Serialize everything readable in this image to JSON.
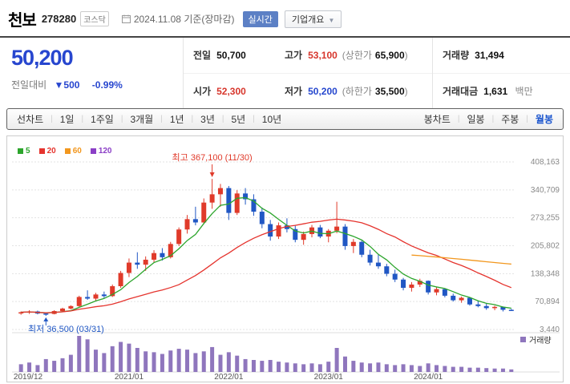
{
  "header": {
    "stock_name": "천보",
    "stock_code": "278280",
    "market_badge": "코스닥",
    "date_info": "2024.11.08 기준(장마감)",
    "realtime_badge": "실시간",
    "company_overview_label": "기업개요"
  },
  "price": {
    "current": "50,200",
    "change_label": "전일대비",
    "change_direction": "▼",
    "change_value": "500",
    "change_percent": "-0.99%",
    "prev_close_label": "전일",
    "prev_close": "50,700",
    "open_label": "시가",
    "open": "52,300",
    "high_label": "고가",
    "high": "53,100",
    "upper_limit_label": "상한가",
    "upper_limit": "65,900",
    "low_label": "저가",
    "low": "50,200",
    "lower_limit_label": "하한가",
    "lower_limit": "35,500",
    "volume_label": "거래량",
    "volume": "31,494",
    "trade_value_label": "거래대금",
    "trade_value": "1,631",
    "trade_value_unit": "백만"
  },
  "toolbar": {
    "line_tabs": [
      "선차트",
      "1일",
      "1주일",
      "3개월",
      "1년",
      "3년",
      "5년",
      "10년"
    ],
    "candle_tabs": [
      "봉차트",
      "일봉",
      "주봉",
      "월봉"
    ],
    "active_tab": "월봉"
  },
  "chart_data": {
    "type": "candlestick",
    "title": "천보 월봉 차트",
    "legend": [
      {
        "label": "5",
        "color": "#2ca52c"
      },
      {
        "label": "20",
        "color": "#e5342e"
      },
      {
        "label": "60",
        "color": "#f2971e"
      },
      {
        "label": "120",
        "color": "#8b3fc6"
      }
    ],
    "colors": {
      "up": "#e03a2a",
      "down": "#2057c4",
      "volume": "#8f76bd"
    },
    "ylim": [
      3440,
      408163
    ],
    "y_ticks": [
      "408,163",
      "340,709",
      "273,255",
      "205,802",
      "138,348",
      "70,894",
      "3,440"
    ],
    "x_labels": [
      {
        "index": 0,
        "label": "2019/12"
      },
      {
        "index": 13,
        "label": "2021/01"
      },
      {
        "index": 25,
        "label": "2022/01"
      },
      {
        "index": 37,
        "label": "2023/01"
      },
      {
        "index": 49,
        "label": "2024/01"
      }
    ],
    "volume_label": "거래량",
    "annotations": [
      {
        "type": "high",
        "text": "최고 367,100 (11/30)",
        "index": 23,
        "color": "#e03a2a"
      },
      {
        "type": "low",
        "text": "최저 36,500 (03/31)",
        "index": 3,
        "color": "#2057c4"
      }
    ],
    "moving_averages": [
      {
        "period": 5,
        "color": "#2ca52c"
      },
      {
        "period": 20,
        "color": "#e5342e"
      },
      {
        "period": 60,
        "color": "#f2971e",
        "start_index": 47
      },
      {
        "period": 120,
        "color": "#8b3fc6",
        "hidden": true
      }
    ],
    "candles": [
      [
        43000,
        47000,
        39000,
        45000,
        900
      ],
      [
        45000,
        50000,
        41000,
        47000,
        1100
      ],
      [
        47000,
        49000,
        40000,
        42000,
        800
      ],
      [
        42000,
        45000,
        36500,
        41000,
        1500
      ],
      [
        41000,
        50000,
        40000,
        48000,
        1300
      ],
      [
        48000,
        56000,
        46000,
        54000,
        1600
      ],
      [
        54000,
        62000,
        52000,
        60000,
        2000
      ],
      [
        60000,
        85000,
        58000,
        82000,
        4200
      ],
      [
        82000,
        98000,
        75000,
        78000,
        3800
      ],
      [
        78000,
        92000,
        72000,
        88000,
        2600
      ],
      [
        88000,
        95000,
        80000,
        84000,
        2200
      ],
      [
        84000,
        112000,
        82000,
        108000,
        3000
      ],
      [
        108000,
        145000,
        104000,
        140000,
        3500
      ],
      [
        140000,
        175000,
        130000,
        165000,
        3300
      ],
      [
        165000,
        190000,
        150000,
        160000,
        2800
      ],
      [
        160000,
        180000,
        145000,
        172000,
        2400
      ],
      [
        172000,
        195000,
        165000,
        188000,
        2300
      ],
      [
        188000,
        200000,
        170000,
        178000,
        2100
      ],
      [
        178000,
        215000,
        175000,
        210000,
        2500
      ],
      [
        210000,
        250000,
        205000,
        245000,
        2700
      ],
      [
        245000,
        280000,
        235000,
        270000,
        2600
      ],
      [
        270000,
        300000,
        255000,
        262000,
        2200
      ],
      [
        262000,
        320000,
        258000,
        310000,
        2400
      ],
      [
        310000,
        367100,
        295000,
        330000,
        2900
      ],
      [
        330000,
        355000,
        300000,
        345000,
        2000
      ],
      [
        345000,
        350000,
        268000,
        285000,
        2300
      ],
      [
        285000,
        340000,
        280000,
        332000,
        1900
      ],
      [
        332000,
        345000,
        305000,
        318000,
        1500
      ],
      [
        318000,
        330000,
        278000,
        288000,
        1400
      ],
      [
        288000,
        298000,
        248000,
        258000,
        1300
      ],
      [
        258000,
        268000,
        218000,
        228000,
        1400
      ],
      [
        228000,
        262000,
        222000,
        255000,
        1200
      ],
      [
        255000,
        272000,
        238000,
        246000,
        1100
      ],
      [
        246000,
        254000,
        214000,
        220000,
        1000
      ],
      [
        220000,
        240000,
        208000,
        234000,
        900
      ],
      [
        234000,
        256000,
        226000,
        250000,
        1000
      ],
      [
        250000,
        256000,
        224000,
        228000,
        900
      ],
      [
        228000,
        246000,
        214000,
        242000,
        1200
      ],
      [
        242000,
        312000,
        236000,
        252000,
        2800
      ],
      [
        252000,
        258000,
        196000,
        205000,
        1800
      ],
      [
        205000,
        222000,
        188000,
        215000,
        1300
      ],
      [
        215000,
        218000,
        178000,
        184000,
        1100
      ],
      [
        184000,
        196000,
        158000,
        165000,
        1000
      ],
      [
        165000,
        186000,
        150000,
        156000,
        1100
      ],
      [
        156000,
        162000,
        132000,
        138000,
        900
      ],
      [
        138000,
        148000,
        118000,
        124000,
        800
      ],
      [
        124000,
        128000,
        98000,
        104000,
        900
      ],
      [
        104000,
        118000,
        95000,
        112000,
        800
      ],
      [
        112000,
        126000,
        106000,
        121000,
        700
      ],
      [
        121000,
        122000,
        88000,
        93000,
        1000
      ],
      [
        93000,
        106000,
        86000,
        101000,
        800
      ],
      [
        101000,
        103000,
        81000,
        85000,
        700
      ],
      [
        85000,
        90000,
        71000,
        74000,
        600
      ],
      [
        74000,
        83000,
        68000,
        80000,
        600
      ],
      [
        80000,
        81000,
        61000,
        64000,
        500
      ],
      [
        64000,
        72000,
        57000,
        60000,
        500
      ],
      [
        60000,
        66000,
        51000,
        55000,
        450
      ],
      [
        55000,
        61000,
        50000,
        58000,
        400
      ],
      [
        58000,
        59000,
        47000,
        51000,
        400
      ],
      [
        51000,
        53100,
        49500,
        50200,
        300
      ]
    ]
  }
}
